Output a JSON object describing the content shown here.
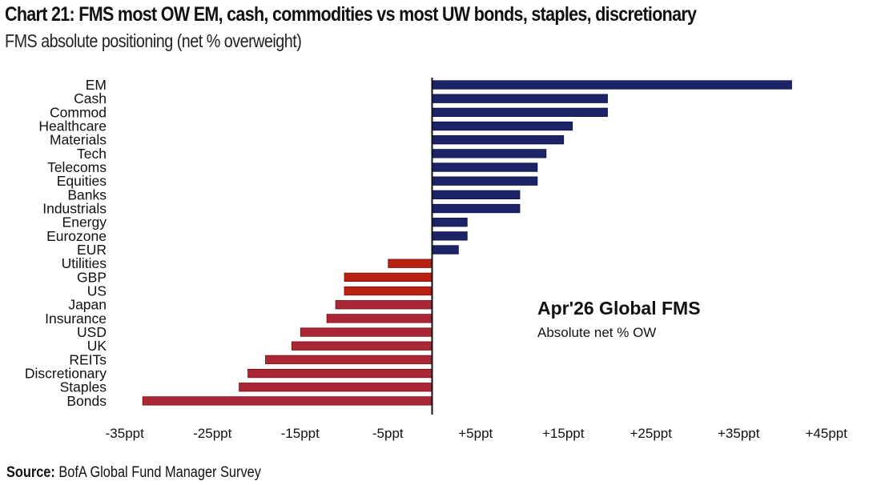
{
  "chart_data": {
    "type": "bar",
    "orientation": "horizontal",
    "title": "Chart 21: FMS most OW EM, cash, commodities vs most UW bonds, staples, discretionary",
    "subtitle": "FMS absolute positioning (net % overweight)",
    "xlabel": "",
    "ylabel": "",
    "xlim": [
      -35,
      45
    ],
    "grid": false,
    "ticks": [
      {
        "value": -35,
        "label": "-35ppt"
      },
      {
        "value": -25,
        "label": "-25ppt"
      },
      {
        "value": -15,
        "label": "-15ppt"
      },
      {
        "value": -5,
        "label": "-5ppt"
      },
      {
        "value": 5,
        "label": "+5ppt"
      },
      {
        "value": 15,
        "label": "+15ppt"
      },
      {
        "value": 25,
        "label": "+25ppt"
      },
      {
        "value": 35,
        "label": "+35ppt"
      },
      {
        "value": 45,
        "label": "+45ppt"
      }
    ],
    "categories": [
      "EM",
      "Cash",
      "Commod",
      "Healthcare",
      "Materials",
      "Tech",
      "Telecoms",
      "Equities",
      "Banks",
      "Industrials",
      "Energy",
      "Eurozone",
      "EUR",
      "Utilities",
      "GBP",
      "US",
      "Japan",
      "Insurance",
      "USD",
      "UK",
      "REITs",
      "Discretionary",
      "Staples",
      "Bonds"
    ],
    "values": [
      41,
      20,
      20,
      16,
      15,
      13,
      12,
      12,
      10,
      10,
      4,
      4,
      3,
      -5,
      -10,
      -10,
      -11,
      -12,
      -15,
      -16,
      -19,
      -21,
      -22,
      -33
    ],
    "colors": {
      "positive": "#1c2366",
      "negative_orange": "#b8200f",
      "negative": "#a92737",
      "axis": "#111111"
    },
    "orange_categories": [
      "Utilities",
      "GBP",
      "US"
    ],
    "annotation": {
      "title": "Apr'26 Global FMS",
      "subtitle": "Absolute net % OW"
    }
  },
  "source": {
    "label": "Source:",
    "text": "BofA Global Fund Manager Survey"
  }
}
